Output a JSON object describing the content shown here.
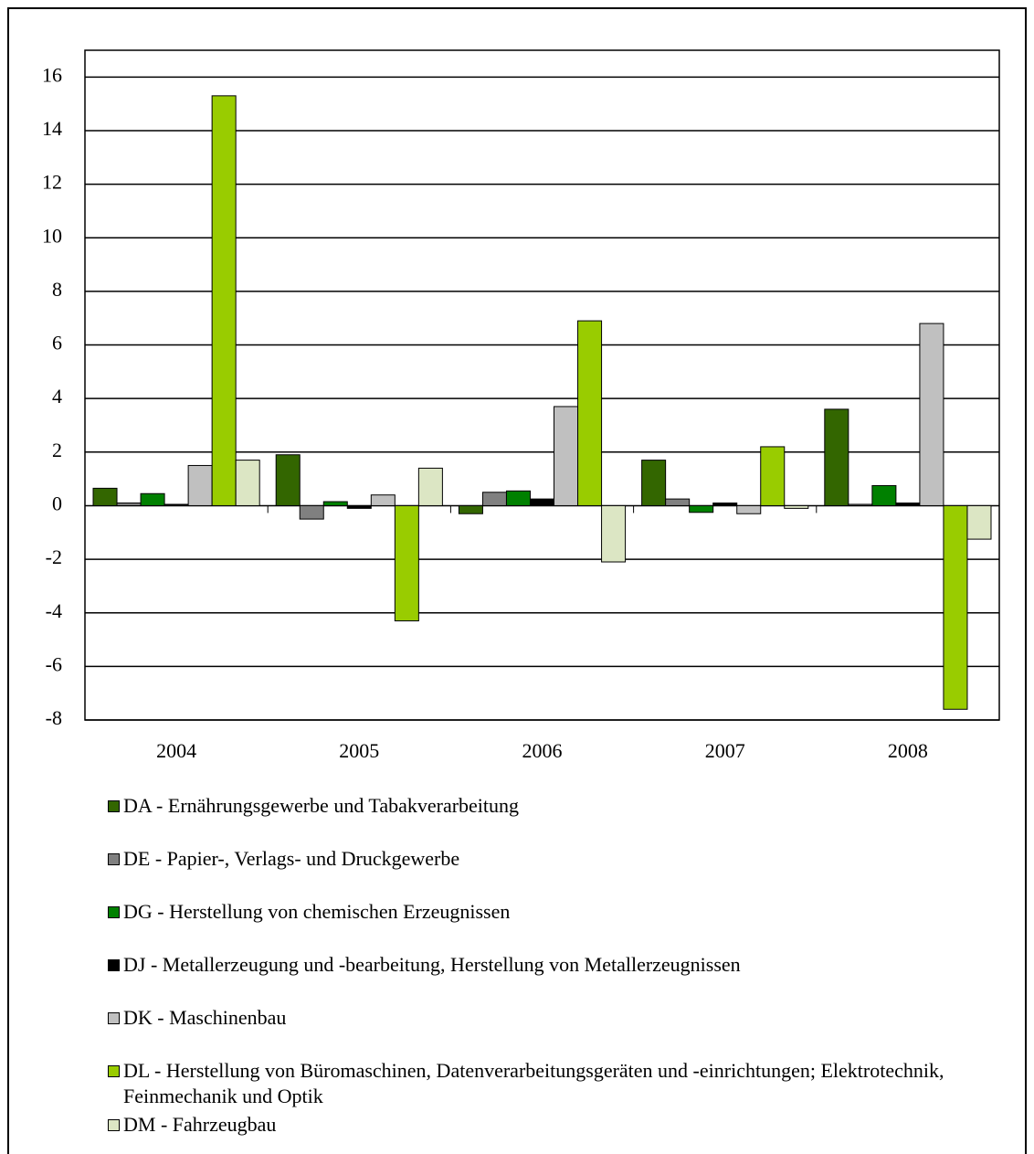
{
  "chart_data": {
    "type": "bar",
    "categories": [
      "2004",
      "2005",
      "2006",
      "2007",
      "2008"
    ],
    "series": [
      {
        "name": "DA - Ernährungsgewerbe und Tabakverarbeitung",
        "color": "#336600",
        "values": [
          0.65,
          1.9,
          -0.3,
          1.7,
          3.6
        ]
      },
      {
        "name": "DE - Papier-, Verlags- und Druckgewerbe",
        "color": "#808080",
        "values": [
          0.1,
          -0.5,
          0.5,
          0.25,
          0.05
        ]
      },
      {
        "name": "DG - Herstellung von chemischen Erzeugnissen",
        "color": "#008000",
        "values": [
          0.45,
          0.15,
          0.55,
          -0.25,
          0.75
        ]
      },
      {
        "name": "DJ - Metallerzeugung und -bearbeitung, Herstellung von Metallerzeugnissen",
        "color": "#000000",
        "values": [
          0.05,
          -0.1,
          0.25,
          0.1,
          0.1
        ]
      },
      {
        "name": "DK - Maschinenbau",
        "color": "#c0c0c0",
        "values": [
          1.5,
          0.4,
          3.7,
          -0.3,
          6.8
        ]
      },
      {
        "name": "DL - Herstellung von Büromaschinen, Datenverarbeitungsgeräten und -einrichtungen; Elektrotechnik, Feinmechanik und Optik",
        "color": "#99cc00",
        "values": [
          15.3,
          -4.3,
          6.9,
          2.2,
          -7.6
        ]
      },
      {
        "name": "DM - Fahrzeugbau",
        "color": "#dce6c4",
        "values": [
          1.7,
          1.4,
          -2.1,
          -0.1,
          -1.25
        ]
      }
    ],
    "ylim": [
      -8,
      17
    ],
    "yticks": [
      -8,
      -6,
      -4,
      -2,
      0,
      2,
      4,
      6,
      8,
      10,
      12,
      14,
      16
    ],
    "grid": true
  }
}
